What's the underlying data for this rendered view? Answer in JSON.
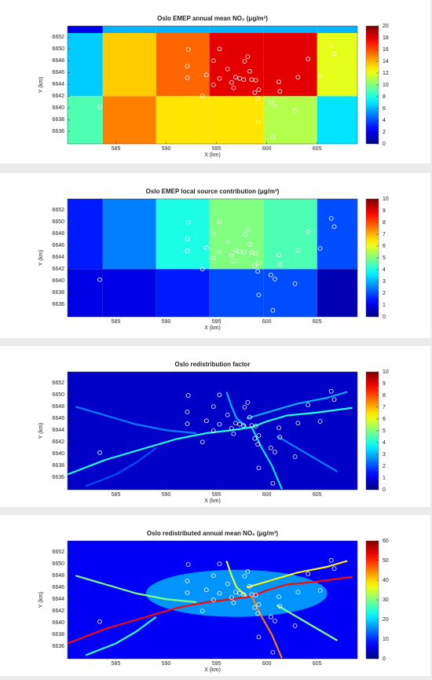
{
  "stations": {
    "x": [
      592.2,
      592.1,
      592.1,
      594.7,
      595.3,
      596.1,
      597.3,
      598.1,
      597.8,
      598.3,
      597.7,
      596.9,
      596.5,
      598.5,
      598.9,
      596.7,
      598.8,
      599.2,
      599.1,
      600.4,
      602.8,
      599.2,
      606.4,
      606.7,
      604.1,
      603.1,
      601.2,
      601.3,
      594.0,
      595.3,
      594.7,
      593.6,
      605.3,
      583.4,
      600.8,
      600.6
    ],
    "y": [
      6649.9,
      6647.1,
      6645.1,
      6648.0,
      6650.0,
      6646.6,
      6645.0,
      6648.7,
      6647.9,
      6646.2,
      6644.8,
      6645.2,
      6644.3,
      6644.8,
      6644.7,
      6643.4,
      6642.6,
      6643.1,
      6641.6,
      6641.0,
      6639.5,
      6637.6,
      6650.6,
      6649.2,
      6648.3,
      6645.2,
      6644.4,
      6642.8,
      6645.6,
      6645.0,
      6643.9,
      6642.0,
      6645.5,
      6640.2,
      6640.3,
      6635.0
    ]
  },
  "chart_data": [
    {
      "type": "grid",
      "title": "Oslo EMEP annual mean NO₂ (μg/m³)",
      "xlabel": "X (km)",
      "ylabel": "Y (km)",
      "colormap": "jet",
      "xlim": [
        580.2,
        609
      ],
      "ylim": [
        6633.9,
        6653.9
      ],
      "xticks": [
        585,
        590,
        595,
        600,
        605
      ],
      "yticks": [
        6636,
        6638,
        6640,
        6642,
        6644,
        6646,
        6648,
        6650,
        6652
      ],
      "clim": [
        0,
        20
      ],
      "cticks": [
        0,
        2,
        4,
        6,
        8,
        10,
        12,
        14,
        16,
        18,
        20
      ],
      "x_edges": [
        580.2,
        583.7,
        589,
        594.3,
        599.7,
        605,
        609
      ],
      "y_edges": [
        6633.9,
        6642,
        6652.7,
        6653.9
      ],
      "values": [
        [
          9,
          15,
          13,
          13,
          11,
          7
        ],
        [
          6.5,
          13.5,
          15.5,
          18,
          18,
          12
        ],
        [
          2,
          6,
          6,
          6,
          6,
          6
        ]
      ]
    },
    {
      "type": "grid",
      "title": "Oslo EMEP local source contribution (μg/m³)",
      "xlabel": "X (km)",
      "ylabel": "Y (km)",
      "colormap": "jet",
      "xlim": [
        580.2,
        609
      ],
      "ylim": [
        6633.9,
        6653.9
      ],
      "xticks": [
        585,
        590,
        595,
        600,
        605
      ],
      "yticks": [
        6636,
        6638,
        6640,
        6642,
        6644,
        6646,
        6648,
        6650,
        6652
      ],
      "clim": [
        0,
        10
      ],
      "cticks": [
        0,
        1,
        2,
        3,
        4,
        5,
        6,
        7,
        8,
        9,
        10
      ],
      "x_edges": [
        580.2,
        583.7,
        589,
        594.3,
        599.7,
        605,
        609
      ],
      "y_edges": [
        6633.9,
        6642,
        6653.9
      ],
      "values": [
        [
          1,
          1,
          1.5,
          2,
          2,
          0.5
        ],
        [
          1.5,
          2.5,
          4,
          5,
          4.5,
          2
        ]
      ]
    },
    {
      "type": "roads",
      "title": "Oslo redistribution factor",
      "xlabel": "X (km)",
      "ylabel": "Y (km)",
      "colormap": "jet",
      "xlim": [
        580.2,
        609
      ],
      "ylim": [
        6633.9,
        6653.9
      ],
      "xticks": [
        585,
        590,
        595,
        600,
        605
      ],
      "yticks": [
        6636,
        6638,
        6640,
        6642,
        6644,
        6646,
        6648,
        6650,
        6652
      ],
      "clim": [
        0,
        10
      ],
      "cticks": [
        0,
        1,
        2,
        3,
        4,
        5,
        6,
        7,
        8,
        9,
        10
      ],
      "background": 0.7,
      "areas": [],
      "roads": [
        {
          "x": [
            580.2,
            584,
            588,
            591,
            594,
            596.5,
            598.5,
            600,
            602,
            605,
            608.5
          ],
          "y": [
            6636.5,
            6639,
            6641,
            6642.5,
            6643.5,
            6644,
            6644.5,
            6645.5,
            6646.5,
            6647,
            6647.8
          ],
          "value": 4
        },
        {
          "x": [
            598.5,
            599.5,
            600.5,
            601.5
          ],
          "y": [
            6644.5,
            6641,
            6638,
            6634
          ],
          "value": 3.5
        },
        {
          "x": [
            598,
            600,
            603,
            606,
            608
          ],
          "y": [
            6646,
            6647,
            6648.5,
            6649.5,
            6650.5
          ],
          "value": 3
        },
        {
          "x": [
            581,
            584,
            587,
            590,
            593
          ],
          "y": [
            6648,
            6646.5,
            6645,
            6644,
            6643.5
          ],
          "value": 2.5
        },
        {
          "x": [
            596,
            596.5,
            597,
            598
          ],
          "y": [
            6650.5,
            6648,
            6646,
            6644.5
          ],
          "value": 3
        },
        {
          "x": [
            601,
            604,
            607
          ],
          "y": [
            6643,
            6640,
            6637
          ],
          "value": 2.5
        },
        {
          "x": [
            589,
            587,
            585,
            582
          ],
          "y": [
            6641,
            6638.5,
            6636.5,
            6634.5
          ],
          "value": 2
        }
      ]
    },
    {
      "type": "roads",
      "title": "Oslo redistributed annual mean NO₂ (μg/m³)",
      "xlabel": "X (km)",
      "ylabel": "Y (km)",
      "colormap": "jet",
      "xlim": [
        580.2,
        609
      ],
      "ylim": [
        6633.9,
        6653.9
      ],
      "xticks": [
        585,
        590,
        595,
        600,
        605
      ],
      "yticks": [
        6636,
        6638,
        6640,
        6642,
        6644,
        6646,
        6648,
        6650,
        6652
      ],
      "clim": [
        0,
        60
      ],
      "cticks": [
        0,
        10,
        20,
        30,
        40,
        50,
        60
      ],
      "background": 7,
      "areas": [
        {
          "cx": 597,
          "cy": 6645,
          "rx": 9,
          "ry": 4,
          "value": 20
        }
      ],
      "roads": [
        {
          "x": [
            580.2,
            584,
            588,
            591,
            594,
            596.5,
            598.5,
            600,
            602,
            605,
            608.5
          ],
          "y": [
            6636.5,
            6639,
            6641,
            6642.5,
            6643.5,
            6644,
            6644.5,
            6645.5,
            6646.5,
            6647,
            6647.8
          ],
          "value": 52
        },
        {
          "x": [
            598.5,
            599.5,
            600.5,
            601.5
          ],
          "y": [
            6644.5,
            6641,
            6638,
            6634
          ],
          "value": 45
        },
        {
          "x": [
            598,
            600,
            603,
            606,
            608
          ],
          "y": [
            6646,
            6647,
            6648.5,
            6649.5,
            6650.5
          ],
          "value": 38
        },
        {
          "x": [
            581,
            584,
            587,
            590,
            593
          ],
          "y": [
            6648,
            6646.5,
            6645,
            6644,
            6643.5
          ],
          "value": 30
        },
        {
          "x": [
            596,
            596.5,
            597,
            598
          ],
          "y": [
            6650.5,
            6648,
            6646,
            6644.5
          ],
          "value": 35
        },
        {
          "x": [
            601,
            604,
            607
          ],
          "y": [
            6643,
            6640,
            6637
          ],
          "value": 30
        },
        {
          "x": [
            589,
            587,
            585,
            582
          ],
          "y": [
            6641,
            6638.5,
            6636.5,
            6634.5
          ],
          "value": 25
        }
      ]
    }
  ]
}
